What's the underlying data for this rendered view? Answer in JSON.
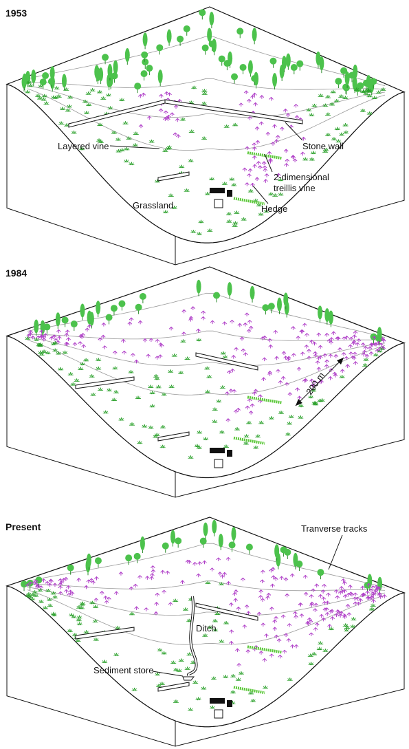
{
  "panels": [
    {
      "title": "1953",
      "labels": {
        "layered_vine": "Layered vine",
        "stone_wall": "Stone wall",
        "treillis_vine": [
          "2-dimensional",
          "treillis vine"
        ],
        "grassland": "Grassland",
        "hedge": "Hedge"
      }
    },
    {
      "title": "1984",
      "labels": {
        "distance": "200 m"
      }
    },
    {
      "title": "Present",
      "labels": {
        "tracks": "Tranverse tracks",
        "ditch": "Ditch",
        "sediment_store": "Sediment store"
      }
    }
  ]
}
